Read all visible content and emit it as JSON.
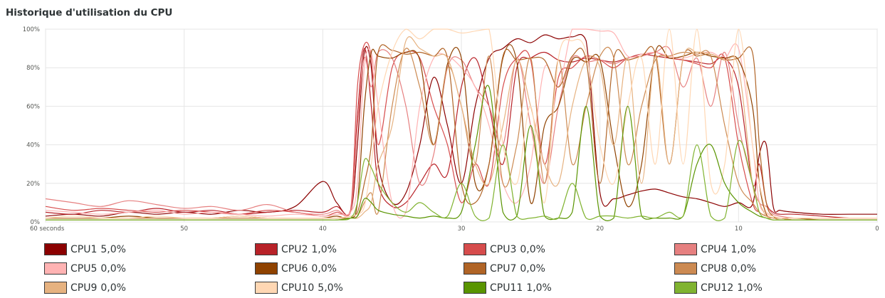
{
  "title": "Historique d'utilisation du CPU",
  "chart_data": {
    "type": "line",
    "title": "Historique d'utilisation du CPU",
    "x_ticks": [
      "60 seconds",
      "50",
      "40",
      "30",
      "20",
      "10",
      "0"
    ],
    "y_ticks": [
      "0%",
      "20%",
      "40%",
      "60%",
      "80%",
      "100%"
    ],
    "xlim": [
      60,
      0
    ],
    "ylim": [
      0,
      100
    ],
    "grid": true,
    "legend_position": "bottom",
    "x": [
      60,
      58,
      56,
      54,
      52,
      50,
      48,
      46,
      44,
      42,
      40,
      39,
      38,
      37.5,
      37,
      36.5,
      36,
      35,
      34,
      33,
      32,
      31,
      30,
      29,
      28,
      27,
      26,
      25,
      24,
      23,
      22,
      21,
      20,
      19,
      18,
      17,
      16,
      15,
      14,
      13,
      12,
      11,
      10,
      9,
      8.5,
      8,
      7.5,
      7,
      6,
      4,
      2,
      0
    ],
    "series": [
      {
        "name": "CPU1",
        "value_text": "5,0%",
        "color": "#8b0000",
        "values": [
          3,
          4,
          3,
          5,
          4,
          5,
          4,
          6,
          5,
          8,
          21,
          10,
          5,
          40,
          88,
          80,
          30,
          10,
          15,
          40,
          75,
          50,
          20,
          60,
          85,
          90,
          95,
          93,
          97,
          95,
          96,
          94,
          15,
          12,
          14,
          16,
          17,
          15,
          13,
          12,
          10,
          8,
          10,
          9,
          35,
          40,
          8,
          6,
          5,
          4,
          4,
          4
        ]
      },
      {
        "name": "CPU2",
        "value_text": "1,0%",
        "color": "#b82228",
        "values": [
          5,
          4,
          6,
          5,
          7,
          5,
          6,
          4,
          5,
          6,
          5,
          8,
          5,
          55,
          90,
          60,
          20,
          8,
          10,
          20,
          30,
          25,
          70,
          85,
          60,
          30,
          80,
          85,
          88,
          84,
          83,
          85,
          84,
          83,
          85,
          87,
          86,
          85,
          84,
          83,
          82,
          85,
          70,
          20,
          30,
          10,
          5,
          4,
          4,
          3,
          2,
          2
        ]
      },
      {
        "name": "CPU3",
        "value_text": "0,0%",
        "color": "#d64c4c",
        "values": [
          8,
          6,
          7,
          6,
          5,
          6,
          5,
          4,
          6,
          5,
          3,
          5,
          6,
          70,
          92,
          85,
          40,
          80,
          88,
          85,
          60,
          40,
          10,
          30,
          20,
          70,
          85,
          84,
          30,
          75,
          80,
          86,
          84,
          80,
          85,
          86,
          88,
          85,
          84,
          82,
          80,
          85,
          40,
          10,
          5,
          3,
          2,
          2,
          2,
          2,
          2,
          2
        ]
      },
      {
        "name": "CPU4",
        "value_text": "1,0%",
        "color": "#e68080",
        "values": [
          12,
          10,
          8,
          11,
          9,
          7,
          8,
          6,
          9,
          5,
          4,
          6,
          5,
          50,
          85,
          70,
          88,
          85,
          60,
          20,
          35,
          80,
          84,
          70,
          60,
          40,
          85,
          50,
          20,
          60,
          85,
          83,
          84,
          82,
          85,
          86,
          88,
          90,
          70,
          85,
          60,
          88,
          50,
          20,
          10,
          8,
          4,
          3,
          2,
          2,
          2,
          2
        ]
      },
      {
        "name": "CPU5",
        "value_text": "0,0%",
        "color": "#ffb3b3",
        "values": [
          6,
          5,
          4,
          5,
          6,
          4,
          5,
          4,
          3,
          4,
          3,
          4,
          5,
          20,
          80,
          88,
          60,
          10,
          5,
          60,
          85,
          86,
          80,
          70,
          50,
          20,
          10,
          30,
          80,
          70,
          100,
          100,
          99,
          98,
          86,
          87,
          88,
          86,
          85,
          87,
          88,
          85,
          90,
          40,
          10,
          5,
          3,
          2,
          2,
          2,
          2,
          2
        ]
      },
      {
        "name": "CPU6",
        "value_text": "0,0%",
        "color": "#8f4200",
        "values": [
          2,
          2,
          2,
          3,
          2,
          2,
          2,
          3,
          2,
          2,
          2,
          3,
          2,
          10,
          60,
          88,
          86,
          85,
          88,
          84,
          40,
          82,
          85,
          20,
          30,
          85,
          83,
          10,
          50,
          60,
          84,
          83,
          84,
          40,
          8,
          30,
          88,
          85,
          86,
          88,
          86,
          85,
          84,
          60,
          20,
          4,
          2,
          2,
          1,
          1,
          1,
          1
        ]
      },
      {
        "name": "CPU7",
        "value_text": "0,0%",
        "color": "#b06426",
        "values": [
          2,
          2,
          2,
          2,
          2,
          2,
          2,
          2,
          2,
          2,
          2,
          2,
          3,
          5,
          20,
          40,
          88,
          89,
          87,
          88,
          86,
          85,
          20,
          10,
          30,
          86,
          84,
          85,
          84,
          70,
          86,
          84,
          20,
          85,
          84,
          86,
          87,
          30,
          85,
          86,
          87,
          84,
          85,
          88,
          40,
          10,
          3,
          2,
          2,
          1,
          1,
          1
        ]
      },
      {
        "name": "CPU8",
        "value_text": "0,0%",
        "color": "#cc8a52",
        "values": [
          2,
          2,
          2,
          2,
          2,
          2,
          2,
          2,
          2,
          2,
          2,
          2,
          2,
          3,
          10,
          15,
          5,
          60,
          90,
          70,
          40,
          80,
          60,
          30,
          86,
          20,
          40,
          85,
          20,
          84,
          30,
          60,
          86,
          85,
          30,
          60,
          84,
          86,
          88,
          87,
          86,
          50,
          20,
          10,
          5,
          3,
          2,
          2,
          1,
          1,
          1,
          1
        ]
      },
      {
        "name": "CPU9",
        "value_text": "0,0%",
        "color": "#e6b280",
        "values": [
          1,
          1,
          1,
          1,
          1,
          1,
          1,
          1,
          1,
          1,
          1,
          1,
          2,
          2,
          5,
          10,
          30,
          50,
          94,
          90,
          86,
          85,
          60,
          30,
          20,
          50,
          84,
          60,
          30,
          20,
          60,
          84,
          80,
          40,
          85,
          20,
          86,
          30,
          85,
          88,
          87,
          84,
          80,
          20,
          10,
          3,
          2,
          1,
          1,
          1,
          1,
          1
        ]
      },
      {
        "name": "CPU10",
        "value_text": "5,0%",
        "color": "#ffd7b3",
        "values": [
          2,
          3,
          2,
          2,
          3,
          2,
          2,
          3,
          2,
          2,
          2,
          2,
          3,
          4,
          8,
          30,
          60,
          88,
          100,
          95,
          100,
          100,
          98,
          99,
          100,
          40,
          20,
          60,
          10,
          85,
          94,
          88,
          40,
          20,
          60,
          85,
          30,
          100,
          30,
          100,
          20,
          30,
          100,
          40,
          20,
          5,
          3,
          2,
          2,
          2,
          2,
          2
        ]
      },
      {
        "name": "CPU11",
        "value_text": "1,0%",
        "color": "#599400",
        "values": [
          1,
          1,
          1,
          1,
          1,
          1,
          1,
          1,
          1,
          1,
          1,
          1,
          2,
          3,
          12,
          10,
          6,
          4,
          3,
          2,
          3,
          2,
          5,
          40,
          70,
          5,
          3,
          50,
          3,
          2,
          5,
          60,
          3,
          2,
          60,
          3,
          2,
          2,
          3,
          30,
          40,
          20,
          10,
          5,
          3,
          2,
          1,
          1,
          1,
          1,
          1,
          1
        ]
      },
      {
        "name": "CPU12",
        "value_text": "1,0%",
        "color": "#80b330",
        "values": [
          1,
          1,
          1,
          1,
          1,
          1,
          1,
          1,
          1,
          1,
          1,
          1,
          2,
          10,
          32,
          28,
          20,
          10,
          5,
          10,
          5,
          3,
          20,
          3,
          2,
          40,
          3,
          2,
          3,
          2,
          20,
          2,
          3,
          3,
          2,
          3,
          2,
          5,
          3,
          40,
          3,
          2,
          42,
          20,
          5,
          2,
          1,
          1,
          1,
          1,
          1,
          1
        ]
      }
    ]
  }
}
